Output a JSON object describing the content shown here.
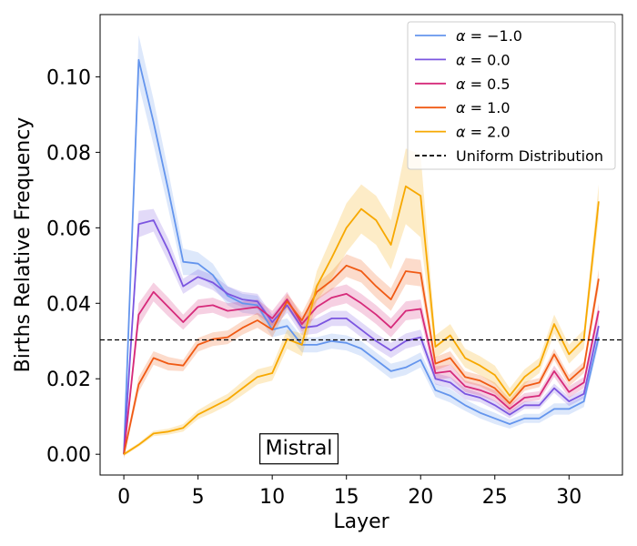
{
  "chart_data": {
    "type": "line",
    "title": "",
    "xlabel": "Layer",
    "ylabel": "Births Relative Frequency",
    "xlim": [
      -1.6,
      33.6
    ],
    "ylim": [
      -0.0055,
      0.1165
    ],
    "xticks": [
      0,
      5,
      10,
      15,
      20,
      25,
      30
    ],
    "yticks": [
      0.0,
      0.02,
      0.04,
      0.06,
      0.08,
      0.1
    ],
    "ytick_labels": [
      "0.00",
      "0.02",
      "0.04",
      "0.06",
      "0.08",
      "0.10"
    ],
    "grid": false,
    "legend_position": "top-right",
    "x": [
      0,
      1,
      2,
      3,
      4,
      5,
      6,
      7,
      8,
      9,
      10,
      11,
      12,
      13,
      14,
      15,
      16,
      17,
      18,
      19,
      20,
      21,
      22,
      23,
      24,
      25,
      26,
      27,
      28,
      29,
      30,
      31,
      32
    ],
    "reference_line": {
      "name": "Uniform Distribution",
      "y": 0.0303,
      "color": "#000000",
      "style": "dashed"
    },
    "annotation": {
      "text": "Mistral",
      "x": 11.8,
      "y": 0.0018
    },
    "series": [
      {
        "name": "α = −1.0",
        "legend_parts": [
          "α",
          " = −1.0"
        ],
        "color": "#6495ed",
        "values": [
          0.0,
          0.1045,
          0.088,
          0.07,
          0.051,
          0.0505,
          0.0475,
          0.042,
          0.04,
          0.0395,
          0.033,
          0.034,
          0.029,
          0.029,
          0.03,
          0.0295,
          0.028,
          0.025,
          0.022,
          0.023,
          0.025,
          0.017,
          0.0155,
          0.013,
          0.011,
          0.0095,
          0.008,
          0.0095,
          0.0095,
          0.012,
          0.012,
          0.014,
          0.031
        ],
        "band": [
          0.0015,
          0.0065,
          0.006,
          0.005,
          0.0035,
          0.003,
          0.003,
          0.0025,
          0.0025,
          0.0025,
          0.002,
          0.002,
          0.002,
          0.002,
          0.002,
          0.002,
          0.002,
          0.002,
          0.002,
          0.002,
          0.002,
          0.0018,
          0.0018,
          0.0015,
          0.0015,
          0.0015,
          0.0012,
          0.0012,
          0.0012,
          0.0015,
          0.0015,
          0.0015,
          0.002
        ]
      },
      {
        "name": "α = 0.0",
        "legend_parts": [
          "α",
          " = 0.0"
        ],
        "color": "#7b55e0",
        "values": [
          0.0,
          0.061,
          0.062,
          0.054,
          0.0445,
          0.047,
          0.0455,
          0.0425,
          0.041,
          0.0405,
          0.035,
          0.0395,
          0.0335,
          0.034,
          0.036,
          0.036,
          0.033,
          0.03,
          0.0275,
          0.03,
          0.031,
          0.02,
          0.019,
          0.016,
          0.015,
          0.013,
          0.0105,
          0.013,
          0.013,
          0.0175,
          0.014,
          0.016,
          0.034
        ],
        "band": [
          0.001,
          0.0035,
          0.003,
          0.003,
          0.002,
          0.002,
          0.002,
          0.002,
          0.002,
          0.002,
          0.002,
          0.002,
          0.002,
          0.002,
          0.002,
          0.002,
          0.002,
          0.002,
          0.002,
          0.002,
          0.002,
          0.0015,
          0.0015,
          0.0015,
          0.0012,
          0.0012,
          0.001,
          0.001,
          0.001,
          0.0012,
          0.0012,
          0.0012,
          0.002
        ]
      },
      {
        "name": "α = 0.5",
        "legend_parts": [
          "α",
          " = 0.5"
        ],
        "color": "#d62a7a",
        "values": [
          0.0,
          0.037,
          0.043,
          0.039,
          0.035,
          0.039,
          0.0395,
          0.038,
          0.0385,
          0.039,
          0.036,
          0.041,
          0.0345,
          0.039,
          0.0415,
          0.0425,
          0.04,
          0.037,
          0.0335,
          0.038,
          0.0385,
          0.0215,
          0.022,
          0.018,
          0.017,
          0.0155,
          0.012,
          0.015,
          0.0155,
          0.022,
          0.0165,
          0.019,
          0.038
        ],
        "band": [
          0.0012,
          0.003,
          0.0025,
          0.0025,
          0.002,
          0.002,
          0.002,
          0.002,
          0.002,
          0.002,
          0.002,
          0.002,
          0.002,
          0.0022,
          0.0025,
          0.0025,
          0.0025,
          0.0025,
          0.0025,
          0.0025,
          0.0025,
          0.0018,
          0.0018,
          0.0015,
          0.0015,
          0.0015,
          0.0012,
          0.0012,
          0.0012,
          0.0015,
          0.0015,
          0.0015,
          0.002
        ]
      },
      {
        "name": "α = 1.0",
        "legend_parts": [
          "α",
          " = 1.0"
        ],
        "color": "#f05a14",
        "values": [
          0.0,
          0.0185,
          0.0255,
          0.024,
          0.0235,
          0.029,
          0.0305,
          0.031,
          0.0335,
          0.0355,
          0.033,
          0.0405,
          0.0355,
          0.043,
          0.046,
          0.05,
          0.0485,
          0.0445,
          0.041,
          0.0485,
          0.048,
          0.024,
          0.0255,
          0.0205,
          0.0195,
          0.0175,
          0.0135,
          0.018,
          0.019,
          0.0265,
          0.0195,
          0.023,
          0.0465
        ],
        "band": [
          0.001,
          0.002,
          0.0018,
          0.0018,
          0.0015,
          0.0018,
          0.0018,
          0.0018,
          0.0018,
          0.002,
          0.002,
          0.002,
          0.002,
          0.0022,
          0.0025,
          0.003,
          0.003,
          0.003,
          0.003,
          0.0035,
          0.0035,
          0.0018,
          0.0018,
          0.0015,
          0.0015,
          0.0015,
          0.0012,
          0.0012,
          0.0012,
          0.0015,
          0.0015,
          0.0015,
          0.0025
        ]
      },
      {
        "name": "α = 2.0",
        "legend_parts": [
          "α",
          " = 2.0"
        ],
        "color": "#f7a800",
        "values": [
          0.0,
          0.0025,
          0.0055,
          0.006,
          0.007,
          0.0105,
          0.0125,
          0.0145,
          0.0175,
          0.0205,
          0.0215,
          0.0305,
          0.029,
          0.0445,
          0.052,
          0.06,
          0.065,
          0.062,
          0.0555,
          0.071,
          0.0685,
          0.0285,
          0.0315,
          0.0255,
          0.0235,
          0.021,
          0.0155,
          0.0205,
          0.0235,
          0.0345,
          0.0265,
          0.0305,
          0.067
        ],
        "band": [
          0.0005,
          0.0005,
          0.0007,
          0.0008,
          0.001,
          0.0012,
          0.0015,
          0.0015,
          0.0018,
          0.002,
          0.002,
          0.0025,
          0.003,
          0.004,
          0.0055,
          0.0065,
          0.0065,
          0.0065,
          0.0065,
          0.01,
          0.011,
          0.003,
          0.003,
          0.0025,
          0.0025,
          0.0025,
          0.002,
          0.002,
          0.002,
          0.0025,
          0.0025,
          0.0025,
          0.0045
        ]
      }
    ]
  }
}
